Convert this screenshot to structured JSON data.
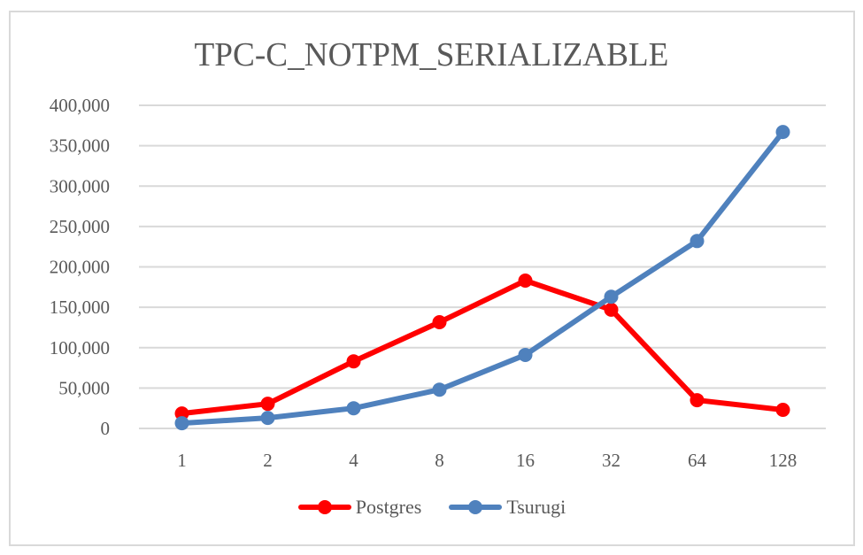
{
  "chart_data": {
    "type": "line",
    "title": "TPC-C_NOTPM_SERIALIZABLE",
    "xlabel": "",
    "ylabel": "",
    "categories": [
      "1",
      "2",
      "4",
      "8",
      "16",
      "32",
      "64",
      "128"
    ],
    "series": [
      {
        "name": "Postgres",
        "color": "#ff0000",
        "values": [
          18500,
          30500,
          83000,
          131500,
          183000,
          147000,
          35000,
          23000
        ]
      },
      {
        "name": "Tsurugi",
        "color": "#4f81bd",
        "values": [
          6500,
          13000,
          25000,
          48000,
          91000,
          163000,
          232000,
          367000
        ]
      }
    ],
    "ylim": [
      0,
      400000
    ],
    "yticks": [
      "0",
      "50,000",
      "100,000",
      "150,000",
      "200,000",
      "250,000",
      "300,000",
      "350,000",
      "400,000"
    ],
    "grid": true,
    "legend_position": "bottom"
  },
  "legend": {
    "items": [
      {
        "label": "Postgres",
        "color": "#ff0000"
      },
      {
        "label": "Tsurugi",
        "color": "#4f81bd"
      }
    ]
  }
}
